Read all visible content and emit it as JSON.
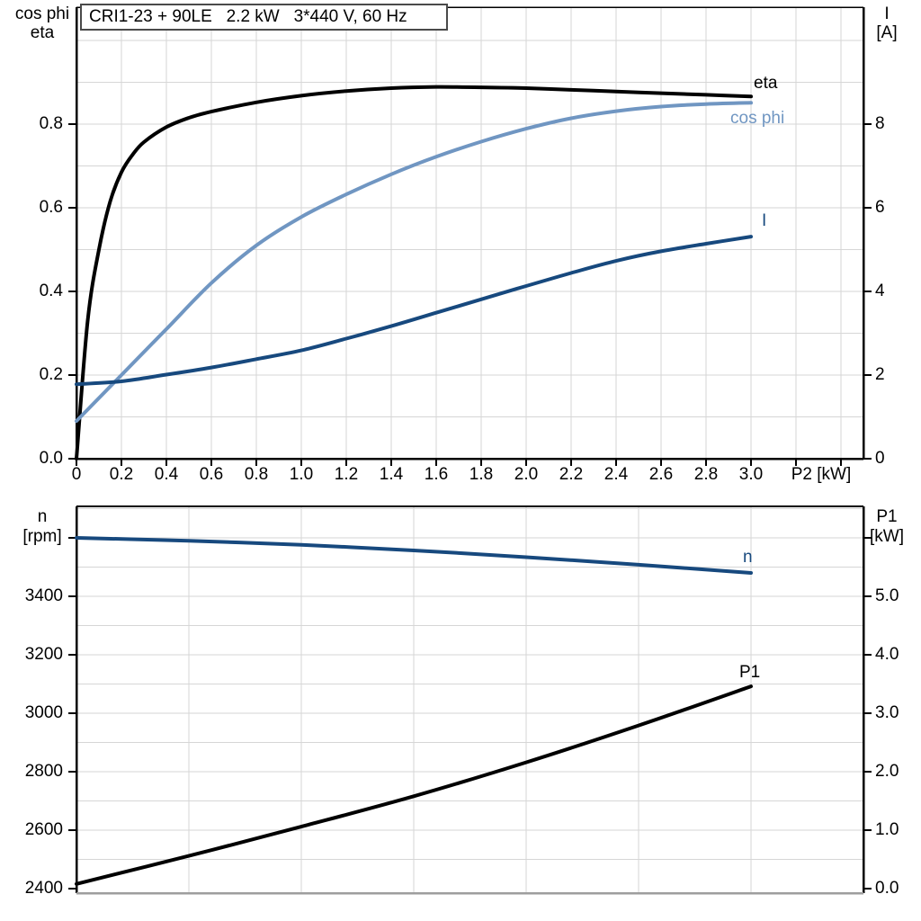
{
  "title_box": {
    "text": "CRI1-23 + 90LE   2.2 kW   3*440 V, 60 Hz"
  },
  "x_axis_label": "P2 [kW]",
  "axis_titles": {
    "top_left_1": "cos phi",
    "top_left_2": "eta",
    "top_right_1": "I",
    "top_right_2": "[A]",
    "bottom_left_1": "n",
    "bottom_left_2": "[rpm]",
    "bottom_right_1": "P1",
    "bottom_right_2": "[kW]"
  },
  "curve_labels": {
    "eta": "eta",
    "cos_phi": "cos phi",
    "current": "I",
    "speed": "n",
    "p1": "P1"
  },
  "colors": {
    "eta": "#000000",
    "cos_phi": "#7096c2",
    "current_I": "#17497e",
    "speed_n": "#17497e",
    "p1": "#000000",
    "grid": "#d6d6d6",
    "frame": "#000000",
    "frame_bottom_gray": "#9e9e9e",
    "background": "#ffffff"
  },
  "chart_data": [
    {
      "id": "top-panel",
      "type": "line",
      "title": "CRI1-23 + 90LE  2.2 kW  3*440 V, 60 Hz",
      "xlabel": "P2 [kW]",
      "ylabel_left": "cos phi / eta",
      "ylabel_right": "I [A]",
      "xlim": [
        0,
        3.5
      ],
      "ylim_left": [
        0,
        1.08
      ],
      "ylim_right": [
        0,
        10.8
      ],
      "grid": {
        "x_step": 0.2,
        "y_step": 0.1
      },
      "legend_position": "inline-right",
      "x_ticks": {
        "values": [
          0,
          0.2,
          0.4,
          0.6,
          0.8,
          1.0,
          1.2,
          1.4,
          1.6,
          1.8,
          2.0,
          2.2,
          2.4,
          2.6,
          2.8,
          3.0
        ],
        "labels": [
          "0",
          "0.2",
          "0.4",
          "0.6",
          "0.8",
          "1.0",
          "1.2",
          "1.4",
          "1.6",
          "1.8",
          "2.0",
          "2.2",
          "2.4",
          "2.6",
          "2.8",
          "3.0"
        ]
      },
      "extra_x_ticks": [
        3.2,
        3.4
      ],
      "left_ticks": {
        "values": [
          0,
          0.2,
          0.4,
          0.6,
          0.8
        ],
        "labels": [
          "0.0",
          "0.2",
          "0.4",
          "0.6",
          "0.8"
        ],
        "extra": []
      },
      "right_ticks": {
        "values": [
          0,
          2,
          4,
          6,
          8
        ],
        "labels": [
          "0",
          "2",
          "4",
          "6",
          "8"
        ],
        "extra": []
      },
      "series": [
        {
          "name": "eta",
          "axis": "left",
          "color": "#000000",
          "x": [
            0,
            0.05,
            0.1,
            0.15,
            0.2,
            0.25,
            0.3,
            0.4,
            0.5,
            0.6,
            0.8,
            1.0,
            1.2,
            1.4,
            1.6,
            1.8,
            2.0,
            2.2,
            2.4,
            2.6,
            2.8,
            3.0
          ],
          "y": [
            0,
            0.33,
            0.5,
            0.615,
            0.685,
            0.727,
            0.757,
            0.793,
            0.815,
            0.83,
            0.852,
            0.868,
            0.879,
            0.886,
            0.889,
            0.888,
            0.886,
            0.882,
            0.878,
            0.874,
            0.87,
            0.866
          ]
        },
        {
          "name": "cos phi",
          "axis": "left",
          "color": "#7096c2",
          "x": [
            0,
            0.2,
            0.4,
            0.6,
            0.8,
            1.0,
            1.2,
            1.4,
            1.6,
            1.8,
            2.0,
            2.2,
            2.4,
            2.6,
            2.8,
            3.0
          ],
          "y": [
            0.09,
            0.2,
            0.31,
            0.42,
            0.51,
            0.578,
            0.632,
            0.68,
            0.722,
            0.758,
            0.789,
            0.814,
            0.831,
            0.842,
            0.848,
            0.851
          ]
        },
        {
          "name": "I",
          "axis": "right",
          "color": "#17497e",
          "x": [
            0,
            0.2,
            0.4,
            0.6,
            0.8,
            1.0,
            1.2,
            1.4,
            1.6,
            1.8,
            2.0,
            2.2,
            2.4,
            2.6,
            2.8,
            3.0
          ],
          "y": [
            1.78,
            1.85,
            2.01,
            2.18,
            2.38,
            2.59,
            2.87,
            3.17,
            3.49,
            3.81,
            4.13,
            4.44,
            4.73,
            4.96,
            5.14,
            5.31
          ]
        }
      ]
    },
    {
      "id": "bottom-panel",
      "type": "line",
      "xlabel": "",
      "ylabel_left": "n [rpm]",
      "ylabel_right": "P1 [kW]",
      "xlim": [
        0,
        3.5
      ],
      "ylim_left": [
        2400,
        3723
      ],
      "ylim_right": [
        0,
        6.6
      ],
      "grid": {
        "x_step": 0.5,
        "y_step": 100
      },
      "x_ticks": {
        "values": [],
        "labels": []
      },
      "extra_x_ticks": [],
      "left_ticks": {
        "values": [
          2400,
          2600,
          2800,
          3000,
          3200,
          3400
        ],
        "labels": [
          "2400",
          "2600",
          "2800",
          "3000",
          "3200",
          "3400"
        ],
        "extra": [
          3600
        ]
      },
      "right_ticks": {
        "values": [
          0,
          1,
          2,
          3,
          4,
          5
        ],
        "labels": [
          "0.0",
          "1.0",
          "2.0",
          "3.0",
          "4.0",
          "5.0"
        ],
        "extra": [
          6
        ]
      },
      "series": [
        {
          "name": "n",
          "axis": "left",
          "color": "#17497e",
          "x": [
            0,
            0.5,
            1.0,
            1.5,
            2.0,
            2.5,
            3.0
          ],
          "y": [
            3600,
            3590,
            3576,
            3557,
            3534,
            3508,
            3480
          ]
        },
        {
          "name": "P1",
          "axis": "right",
          "color": "#000000",
          "x": [
            0,
            0.5,
            1.0,
            1.5,
            2.0,
            2.5,
            3.0
          ],
          "y": [
            0.08,
            0.56,
            1.06,
            1.58,
            2.16,
            2.79,
            3.46
          ]
        }
      ]
    }
  ]
}
